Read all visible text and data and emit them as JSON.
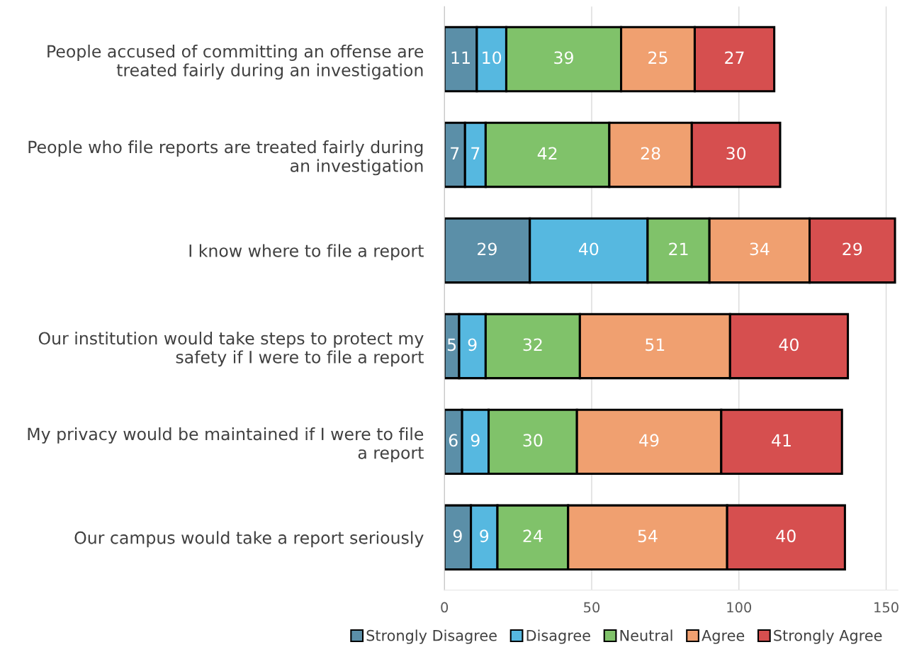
{
  "chart_data": {
    "type": "bar",
    "orientation": "horizontal",
    "stacked": true,
    "categories": [
      "People accused of committing an offense are\ntreated fairly during an investigation",
      "People who file reports are treated fairly during\nan investigation",
      "I know where to file a report",
      "Our institution would take steps to protect my\nsafety if I were to file a report",
      "My privacy would be maintained if I were to file\na report",
      "Our campus would take a report seriously"
    ],
    "series": [
      {
        "name": "Strongly Disagree",
        "color": "#5b8fa8",
        "values": [
          11,
          7,
          29,
          5,
          6,
          9
        ]
      },
      {
        "name": "Disagree",
        "color": "#56b8e0",
        "values": [
          10,
          7,
          40,
          9,
          9,
          9
        ]
      },
      {
        "name": "Neutral",
        "color": "#80c26a",
        "values": [
          39,
          42,
          21,
          32,
          30,
          24
        ]
      },
      {
        "name": "Agree",
        "color": "#f0a070",
        "values": [
          25,
          28,
          34,
          51,
          49,
          54
        ]
      },
      {
        "name": "Strongly Agree",
        "color": "#d64f4f",
        "values": [
          27,
          30,
          29,
          40,
          41,
          40
        ]
      }
    ],
    "xlim": [
      0,
      154
    ],
    "xticks": [
      0,
      50,
      100,
      150
    ],
    "grid": "x",
    "legend": "bottom",
    "data_labels": true
  }
}
